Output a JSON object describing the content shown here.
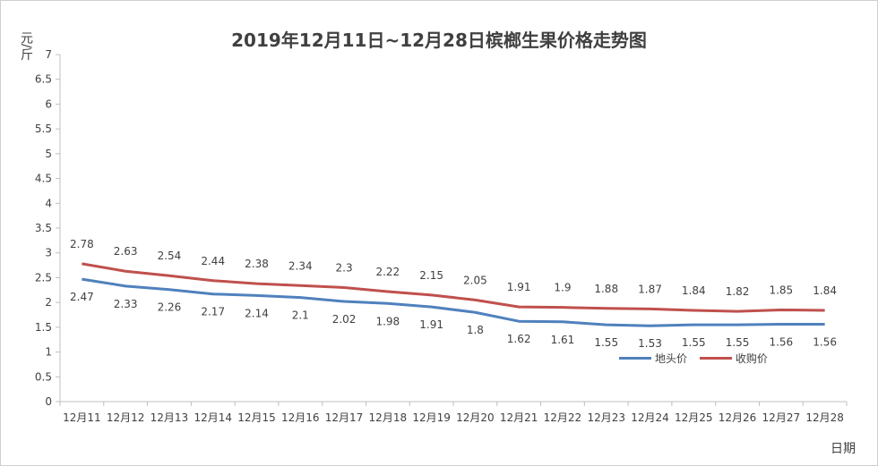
{
  "chart_data": {
    "type": "line",
    "title": "2019年12月11日~12月28日槟榔生果价格走势图",
    "ylabel": "元/斤",
    "xlabel": "日期",
    "ylim": [
      0,
      7
    ],
    "yticks": [
      "0",
      "0.5",
      "1",
      "1.5",
      "2",
      "2.5",
      "3",
      "3.5",
      "4",
      "4.5",
      "5",
      "5.5",
      "6",
      "6.5",
      "7"
    ],
    "categories": [
      "12月11",
      "12月12",
      "12月13",
      "12月14",
      "12月15",
      "12月16",
      "12月17",
      "12月18",
      "12月19",
      "12月20",
      "12月21",
      "12月22",
      "12月23",
      "12月24",
      "12月25",
      "12月26",
      "12月27",
      "12月28"
    ],
    "series": [
      {
        "name": "地头价",
        "color": "#4f81bd",
        "values": [
          2.47,
          2.33,
          2.26,
          2.17,
          2.14,
          2.1,
          2.02,
          1.98,
          1.91,
          1.8,
          1.62,
          1.61,
          1.55,
          1.53,
          1.55,
          1.55,
          1.56,
          1.56
        ],
        "labels": [
          "2.47",
          "2.33",
          "2.26",
          "2.17",
          "2.14",
          "2.1",
          "2.02",
          "1.98",
          "1.91",
          "1.8",
          "1.62",
          "1.61",
          "1.55",
          "1.53",
          "1.55",
          "1.55",
          "1.56",
          "1.56"
        ]
      },
      {
        "name": "收购价",
        "color": "#c0504d",
        "values": [
          2.78,
          2.63,
          2.54,
          2.44,
          2.38,
          2.34,
          2.3,
          2.22,
          2.15,
          2.05,
          1.91,
          1.9,
          1.88,
          1.87,
          1.84,
          1.82,
          1.85,
          1.84
        ],
        "labels": [
          "2.78",
          "2.63",
          "2.54",
          "2.44",
          "2.38",
          "2.34",
          "2.3",
          "2.22",
          "2.15",
          "2.05",
          "1.91",
          "1.9",
          "1.88",
          "1.87",
          "1.84",
          "1.82",
          "1.85",
          "1.84"
        ]
      }
    ],
    "grid": false,
    "legend": "bottom-right"
  }
}
